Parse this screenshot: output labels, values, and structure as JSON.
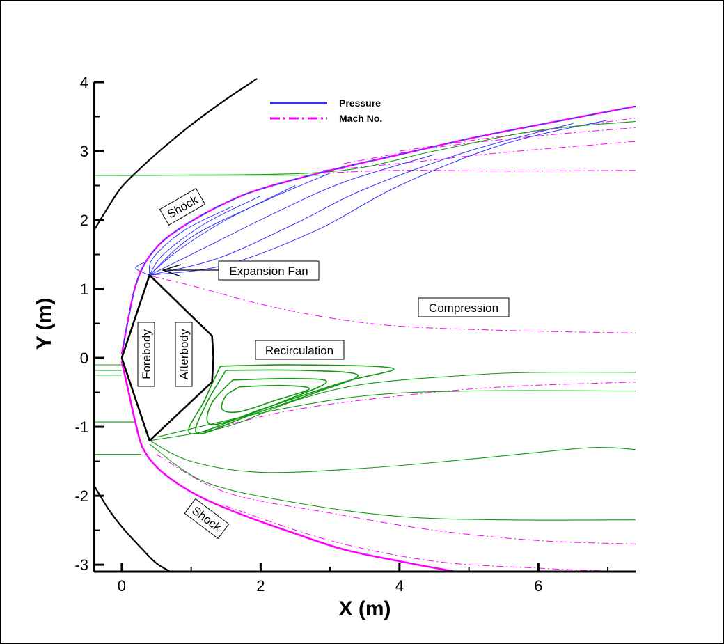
{
  "chart_data": {
    "type": "line",
    "xlabel": "X (m)",
    "ylabel": "Y (m)",
    "xlim": [
      -0.4,
      7.4
    ],
    "ylim": [
      -3.1,
      4.0
    ],
    "x_ticks": [
      0,
      2,
      4,
      6
    ],
    "y_ticks": [
      -3,
      -2,
      -1,
      0,
      1,
      2,
      3,
      4
    ],
    "grid": false,
    "legend_position": "top",
    "series": [
      {
        "name": "Pressure",
        "color": "#3333ff",
        "style": "solid"
      },
      {
        "name": "Mach No.",
        "color": "#ff00ff",
        "style": "dash-dot"
      }
    ],
    "annotations": {
      "shock_upper": "Shock",
      "shock_lower": "Shock",
      "expansion_fan": "Expansion Fan",
      "compression": "Compression",
      "recirculation": "Recirculation",
      "forebody": "Forebody",
      "afterbody": "Afterbody"
    },
    "body": [
      [
        0,
        0
      ],
      [
        0.4,
        1.2
      ],
      [
        1.3,
        0.32
      ],
      [
        1.32,
        0
      ],
      [
        1.3,
        -0.35
      ],
      [
        0.4,
        -1.2
      ],
      [
        0,
        0
      ]
    ],
    "outer_shock_upper": [
      [
        -0.4,
        1.85
      ],
      [
        -0.2,
        2.18
      ],
      [
        0,
        2.48
      ],
      [
        0.3,
        2.78
      ],
      [
        0.6,
        3.05
      ],
      [
        1.0,
        3.38
      ],
      [
        1.5,
        3.75
      ],
      [
        1.95,
        4.05
      ]
    ],
    "outer_shock_lower": [
      [
        -0.4,
        -1.85
      ],
      [
        -0.2,
        -2.18
      ],
      [
        0,
        -2.45
      ],
      [
        0.3,
        -2.78
      ],
      [
        0.5,
        -2.98
      ],
      [
        0.7,
        -3.1
      ]
    ],
    "bow_shock_upper": [
      [
        0,
        0.05
      ],
      [
        0.1,
        0.6
      ],
      [
        0.2,
        1.05
      ],
      [
        0.35,
        1.4
      ],
      [
        0.6,
        1.7
      ],
      [
        1.0,
        1.98
      ],
      [
        1.5,
        2.25
      ],
      [
        2.0,
        2.45
      ],
      [
        3.0,
        2.72
      ],
      [
        4.0,
        2.95
      ],
      [
        5.0,
        3.18
      ],
      [
        6.0,
        3.38
      ],
      [
        7.4,
        3.65
      ]
    ],
    "bow_shock_lower": [
      [
        0,
        -0.05
      ],
      [
        0.1,
        -0.5
      ],
      [
        0.2,
        -0.95
      ],
      [
        0.3,
        -1.3
      ],
      [
        0.5,
        -1.58
      ],
      [
        0.8,
        -1.82
      ],
      [
        1.2,
        -2.05
      ],
      [
        1.8,
        -2.3
      ],
      [
        2.5,
        -2.55
      ],
      [
        3.2,
        -2.78
      ],
      [
        4.0,
        -2.95
      ],
      [
        4.8,
        -3.1
      ]
    ]
  }
}
